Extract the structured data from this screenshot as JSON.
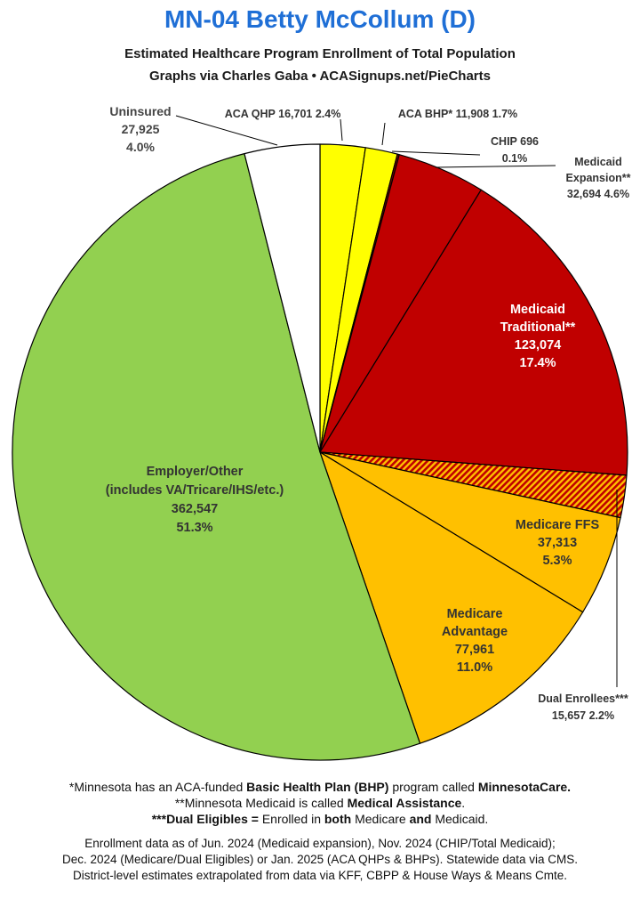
{
  "header": {
    "title": "MN-04 Betty McCollum (D)",
    "subtitle_line1": "Estimated Healthcare Program Enrollment of Total Population",
    "subtitle_line2": "Graphs via Charles Gaba  •  ACASignups.net/PieCharts"
  },
  "chart_data": {
    "type": "pie",
    "title": "MN-04 Betty McCollum (D)",
    "subtitle": "Estimated Healthcare Program Enrollment of Total Population",
    "start_angle": "12 o'clock, clockwise",
    "slices": [
      {
        "key": "aca_qhp",
        "name": "ACA QHP",
        "value": 16701,
        "percent": 2.4,
        "color": "#ffff00",
        "pattern": "solid",
        "label_lines": [
          "ACA QHP 16,701 2.4%"
        ]
      },
      {
        "key": "aca_bhp",
        "name": "ACA BHP*",
        "value": 11908,
        "percent": 1.7,
        "color": "#ffff00",
        "pattern": "solid",
        "label_lines": [
          "ACA BHP* 11,908 1.7%"
        ]
      },
      {
        "key": "chip",
        "name": "CHIP",
        "value": 696,
        "percent": 0.1,
        "color": "#8b0000",
        "pattern": "solid",
        "label_lines": [
          "CHIP 696",
          "0.1%"
        ]
      },
      {
        "key": "medicaid_expansion",
        "name": "Medicaid Expansion**",
        "value": 32694,
        "percent": 4.6,
        "color": "#c00000",
        "pattern": "solid",
        "label_lines": [
          "Medicaid",
          "Expansion**",
          "32,694 4.6%"
        ]
      },
      {
        "key": "medicaid_traditional",
        "name": "Medicaid Traditional**",
        "value": 123074,
        "percent": 17.4,
        "color": "#c00000",
        "pattern": "solid",
        "label_lines": [
          "Medicaid",
          "Traditional**",
          "123,074",
          "17.4%"
        ]
      },
      {
        "key": "dual",
        "name": "Dual Enrollees***",
        "value": 15657,
        "percent": 2.2,
        "color": "#c00000",
        "pattern": "hatch",
        "label_lines": [
          "Dual Enrollees***",
          "15,657 2.2%"
        ]
      },
      {
        "key": "medicare_ffs",
        "name": "Medicare FFS",
        "value": 37313,
        "percent": 5.3,
        "color": "#ffc000",
        "pattern": "solid",
        "label_lines": [
          "Medicare FFS",
          "37,313",
          "5.3%"
        ]
      },
      {
        "key": "medicare_advantage",
        "name": "Medicare Advantage",
        "value": 77961,
        "percent": 11.0,
        "color": "#ffc000",
        "pattern": "solid",
        "label_lines": [
          "Medicare",
          "Advantage",
          "77,961",
          "11.0%"
        ]
      },
      {
        "key": "employer",
        "name": "Employer/Other",
        "value": 362547,
        "percent": 51.3,
        "color": "#92d050",
        "pattern": "solid",
        "label_lines": [
          "Employer/Other",
          "(includes VA/Tricare/IHS/etc.)",
          "362,547",
          "51.3%"
        ]
      },
      {
        "key": "uninsured",
        "name": "Uninsured",
        "value": 27925,
        "percent": 4.0,
        "color": "#ffffff",
        "pattern": "solid",
        "label_lines": [
          "Uninsured",
          "27,925",
          "4.0%"
        ]
      }
    ]
  },
  "footnotes": {
    "bhp_pre": "*Minnesota has an ACA-funded ",
    "bhp_bold": "Basic Health Plan (BHP)",
    "bhp_mid": " program called ",
    "bhp_name": "MinnesotaCare.",
    "ma_pre": "**Minnesota Medicaid is called ",
    "ma_bold": "Medical Assistance",
    "ma_post": ".",
    "dual_bold": "***Dual Eligibles =",
    "dual_mid1": " Enrolled in ",
    "dual_both": "both",
    "dual_mid2": " Medicare ",
    "dual_and": "and",
    "dual_post": " Medicaid.",
    "source1": "Enrollment data as of Jun. 2024 (Medicaid expansion), Nov. 2024 (CHIP/Total Medicaid);",
    "source2": "Dec. 2024 (Medicare/Dual Eligibles) or Jan. 2025 (ACA QHPs & BHPs). Statewide data via CMS.",
    "source3": "District-level estimates extrapolated from data via KFF, CBPP & House Ways & Means Cmte."
  }
}
